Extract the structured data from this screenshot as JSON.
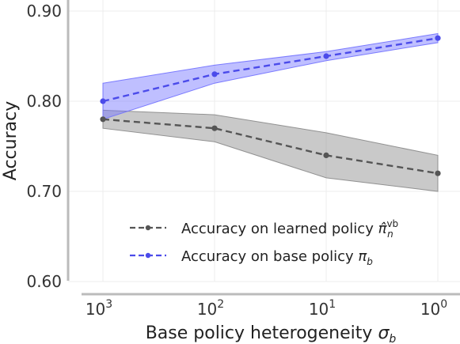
{
  "chart_data": {
    "type": "line",
    "xlabel_text": "Base policy heterogeneity",
    "xlabel_symbol": "σ",
    "xlabel_sub": "b",
    "ylabel": "Accuracy",
    "x_ticks": [
      {
        "base": "10",
        "exp": "3"
      },
      {
        "base": "10",
        "exp": "2"
      },
      {
        "base": "10",
        "exp": "1"
      },
      {
        "base": "10",
        "exp": "0"
      }
    ],
    "x_scale": "log, reversed",
    "y_ticks": [
      "0.60",
      "0.70",
      "0.80",
      "0.90"
    ],
    "ylim": [
      0.6,
      0.9
    ],
    "grid": true,
    "legend_position": "lower-center",
    "series": [
      {
        "name": "Accuracy on learned policy",
        "legend_symbol": "π̂",
        "legend_sub": "n",
        "legend_sup": "vb",
        "color": "#555555",
        "band_color": "#888888",
        "values": [
          0.78,
          0.77,
          0.74,
          0.72
        ],
        "lower": [
          0.77,
          0.755,
          0.715,
          0.7
        ],
        "upper": [
          0.79,
          0.785,
          0.765,
          0.74
        ]
      },
      {
        "name": "Accuracy on base policy",
        "legend_symbol": "π",
        "legend_sub": "b",
        "color": "#4b4bea",
        "band_color": "#7070ff",
        "values": [
          0.8,
          0.83,
          0.85,
          0.87
        ],
        "lower": [
          0.78,
          0.82,
          0.845,
          0.865
        ],
        "upper": [
          0.82,
          0.84,
          0.855,
          0.875
        ]
      }
    ]
  }
}
